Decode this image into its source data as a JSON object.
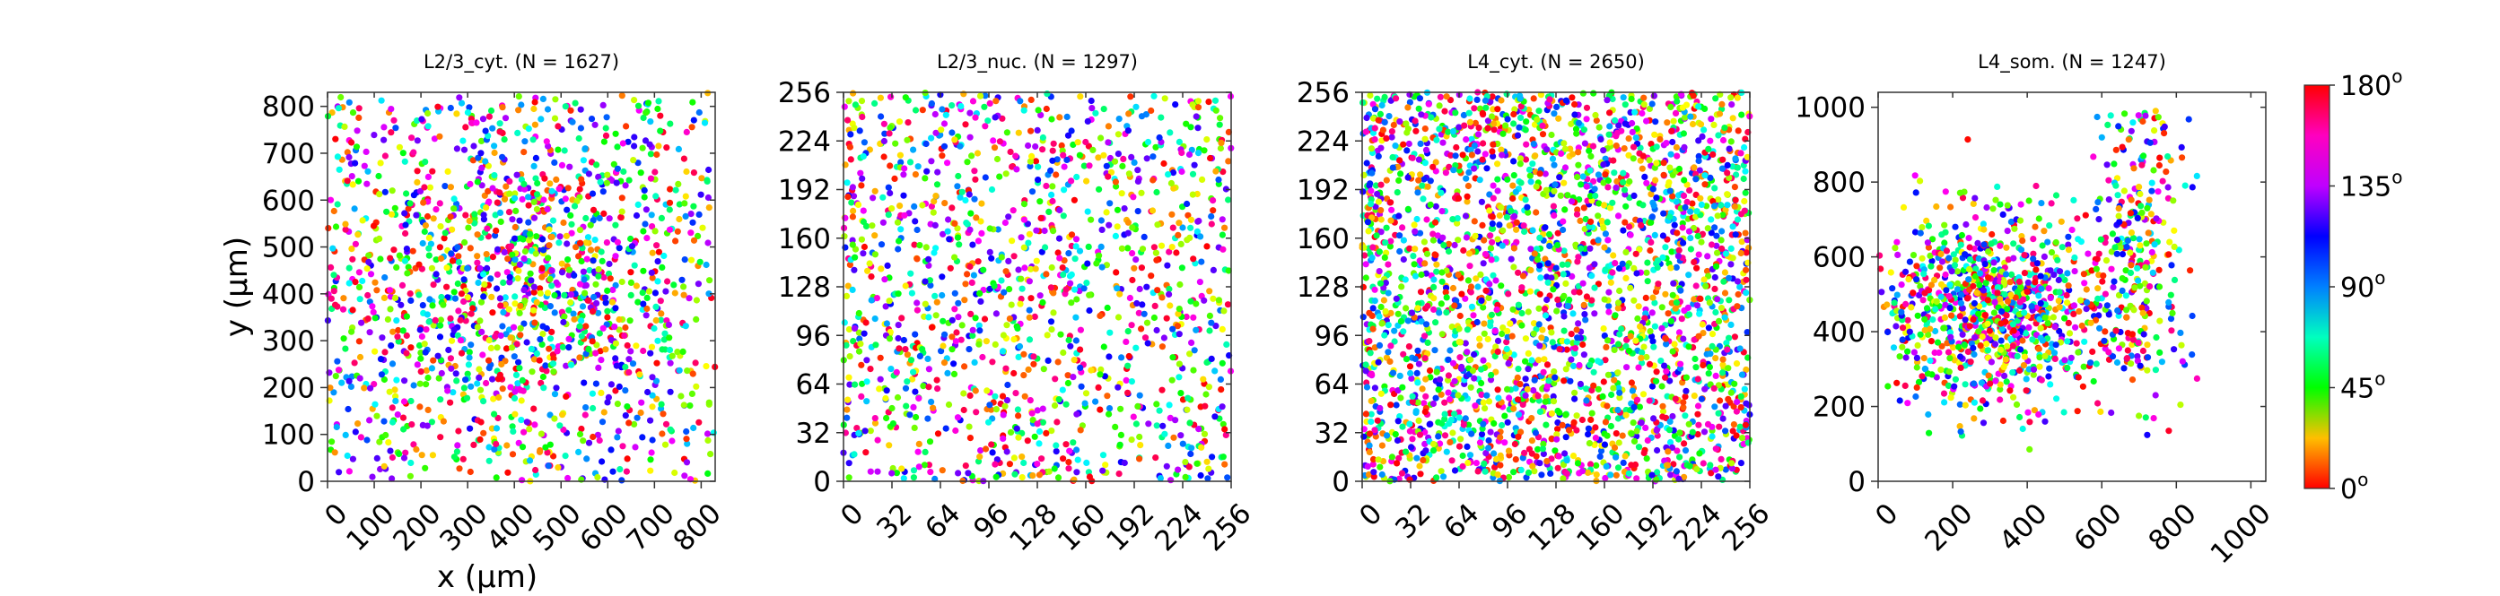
{
  "chart_data": [
    {
      "type": "scatter",
      "title": "L2/3_cyt. (N = 1627)",
      "xlabel": "x (μm)",
      "ylabel": "y (μm)",
      "xlim": [
        0,
        830
      ],
      "ylim": [
        0,
        830
      ],
      "xticks": [
        "0",
        "100",
        "200",
        "300",
        "400",
        "500",
        "600",
        "700",
        "800"
      ],
      "yticks": [
        "0",
        "100",
        "200",
        "300",
        "400",
        "500",
        "600",
        "700",
        "800"
      ],
      "n_points": 1627,
      "distribution": "spread across field, denser in center"
    },
    {
      "type": "scatter",
      "title": "L2/3_nuc. (N = 1297)",
      "xlabel": "",
      "ylabel": "",
      "xlim": [
        0,
        256
      ],
      "ylim": [
        0,
        256
      ],
      "xticks": [
        "0",
        "32",
        "64",
        "96",
        "128",
        "160",
        "192",
        "224",
        "256"
      ],
      "yticks": [
        "0",
        "32",
        "64",
        "96",
        "128",
        "160",
        "192",
        "224",
        "256"
      ],
      "n_points": 1297,
      "distribution": "uniform"
    },
    {
      "type": "scatter",
      "title": "L4_cyt. (N = 2650)",
      "xlabel": "",
      "ylabel": "",
      "xlim": [
        0,
        256
      ],
      "ylim": [
        0,
        256
      ],
      "xticks": [
        "0",
        "32",
        "64",
        "96",
        "128",
        "160",
        "192",
        "224",
        "256"
      ],
      "yticks": [
        "0",
        "32",
        "64",
        "96",
        "128",
        "160",
        "192",
        "224",
        "256"
      ],
      "n_points": 2650,
      "distribution": "dense uniform"
    },
    {
      "type": "scatter",
      "title": "L4_som. (N = 1247)",
      "xlabel": "",
      "ylabel": "",
      "xlim": [
        0,
        1040
      ],
      "ylim": [
        0,
        1040
      ],
      "xticks": [
        "0",
        "200",
        "400",
        "600",
        "800",
        "1000"
      ],
      "yticks": [
        "0",
        "200",
        "400",
        "600",
        "800",
        "1000"
      ],
      "n_points": 1247,
      "distribution": "cluster centered near (320, 470) plus vertical band near x 600-800"
    }
  ],
  "colorbar": {
    "labels": [
      "0",
      "45",
      "90",
      "135",
      "180"
    ],
    "unit_symbol": "o",
    "range": [
      0,
      180
    ],
    "colormap": "hsv",
    "colors": [
      "#ff0000",
      "#ffbf00",
      "#00ff00",
      "#00ffbf",
      "#0080ff",
      "#0000ff",
      "#bf00ff",
      "#ff00bf",
      "#ff0000"
    ]
  }
}
